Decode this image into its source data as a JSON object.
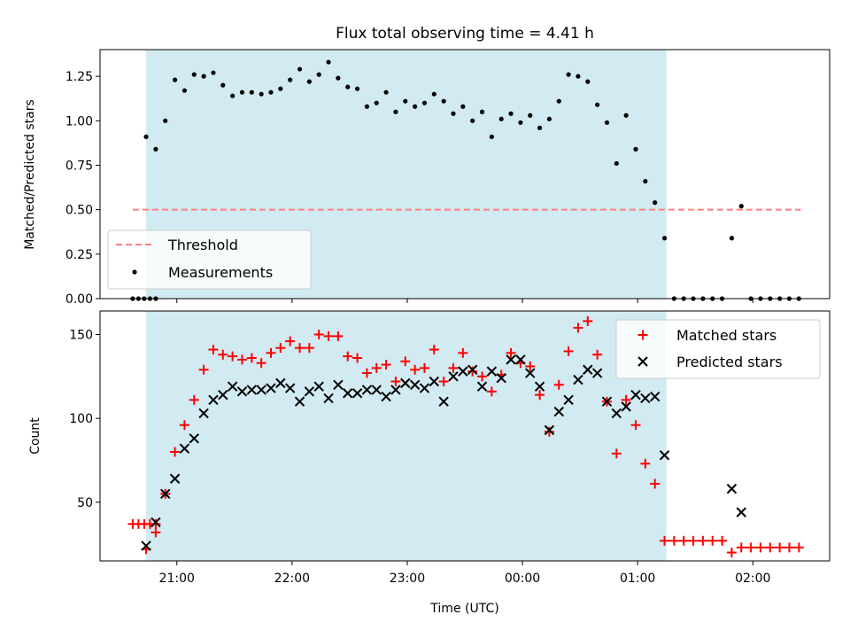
{
  "figure": {
    "title": "Flux total observing time = 4.41 h",
    "xlabel": "Time (UTC)"
  },
  "colors": {
    "shade": "#add8e6",
    "threshold": "#ff7f7f",
    "matched": "#ff0000",
    "predicted": "#000000",
    "measurements": "#000000"
  },
  "chart_data": [
    {
      "type": "scatter",
      "name": "ratio-panel",
      "ylabel": "Matched/Predicted stars",
      "ylim": [
        0,
        1.4
      ],
      "xlim": [
        "20:20",
        "02:40"
      ],
      "yticks": [
        "0.00",
        "0.25",
        "0.50",
        "0.75",
        "1.00",
        "1.25"
      ],
      "xticks": [
        "21:00",
        "22:00",
        "23:00",
        "00:00",
        "01:00",
        "02:00"
      ],
      "shaded_interval": [
        "20:44",
        "01:15"
      ],
      "threshold": {
        "name": "Threshold",
        "value": 0.5,
        "x": [
          "20:37",
          "02:25"
        ]
      },
      "legend": {
        "position": "lower-left",
        "entries": [
          "Threshold",
          "Measurements"
        ]
      },
      "series": [
        {
          "name": "Measurements",
          "points": [
            [
              "20:37",
              0.0
            ],
            [
              "20:40",
              0.0
            ],
            [
              "20:43",
              0.0
            ],
            [
              "20:46",
              0.0
            ],
            [
              "20:49",
              0.0
            ],
            [
              "20:44",
              0.91
            ],
            [
              "20:49",
              0.84
            ],
            [
              "20:54",
              1.0
            ],
            [
              "20:59",
              1.23
            ],
            [
              "21:04",
              1.17
            ],
            [
              "21:09",
              1.26
            ],
            [
              "21:14",
              1.25
            ],
            [
              "21:19",
              1.27
            ],
            [
              "21:24",
              1.2
            ],
            [
              "21:29",
              1.14
            ],
            [
              "21:34",
              1.16
            ],
            [
              "21:39",
              1.16
            ],
            [
              "21:44",
              1.15
            ],
            [
              "21:49",
              1.16
            ],
            [
              "21:54",
              1.18
            ],
            [
              "21:59",
              1.23
            ],
            [
              "22:04",
              1.29
            ],
            [
              "22:09",
              1.22
            ],
            [
              "22:14",
              1.26
            ],
            [
              "22:19",
              1.33
            ],
            [
              "22:24",
              1.24
            ],
            [
              "22:29",
              1.19
            ],
            [
              "22:34",
              1.18
            ],
            [
              "22:39",
              1.08
            ],
            [
              "22:44",
              1.1
            ],
            [
              "22:49",
              1.16
            ],
            [
              "22:54",
              1.05
            ],
            [
              "22:59",
              1.11
            ],
            [
              "23:04",
              1.08
            ],
            [
              "23:09",
              1.1
            ],
            [
              "23:14",
              1.15
            ],
            [
              "23:19",
              1.11
            ],
            [
              "23:24",
              1.04
            ],
            [
              "23:29",
              1.08
            ],
            [
              "23:34",
              1.0
            ],
            [
              "23:39",
              1.05
            ],
            [
              "23:44",
              0.91
            ],
            [
              "23:49",
              1.01
            ],
            [
              "23:54",
              1.04
            ],
            [
              "23:59",
              0.99
            ],
            [
              "00:04",
              1.03
            ],
            [
              "00:09",
              0.96
            ],
            [
              "00:14",
              1.01
            ],
            [
              "00:19",
              1.11
            ],
            [
              "00:24",
              1.26
            ],
            [
              "00:29",
              1.25
            ],
            [
              "00:34",
              1.22
            ],
            [
              "00:39",
              1.09
            ],
            [
              "00:44",
              0.99
            ],
            [
              "00:49",
              0.76
            ],
            [
              "00:54",
              1.03
            ],
            [
              "00:59",
              0.84
            ],
            [
              "01:04",
              0.66
            ],
            [
              "01:09",
              0.54
            ],
            [
              "01:14",
              0.34
            ],
            [
              "01:19",
              0.0
            ],
            [
              "01:24",
              0.0
            ],
            [
              "01:29",
              0.0
            ],
            [
              "01:34",
              0.0
            ],
            [
              "01:39",
              0.0
            ],
            [
              "01:44",
              0.0
            ],
            [
              "01:49",
              0.34
            ],
            [
              "01:54",
              0.52
            ],
            [
              "01:59",
              0.0
            ],
            [
              "02:04",
              0.0
            ],
            [
              "02:09",
              0.0
            ],
            [
              "02:14",
              0.0
            ],
            [
              "02:19",
              0.0
            ],
            [
              "02:24",
              0.0
            ]
          ]
        }
      ]
    },
    {
      "type": "scatter",
      "name": "count-panel",
      "ylabel": "Count",
      "ylim": [
        15,
        164
      ],
      "xlim": [
        "20:20",
        "02:40"
      ],
      "yticks": [
        "50",
        "100",
        "150"
      ],
      "xticks": [
        "21:00",
        "22:00",
        "23:00",
        "00:00",
        "01:00",
        "02:00"
      ],
      "shaded_interval": [
        "20:44",
        "01:15"
      ],
      "legend": {
        "position": "upper-right",
        "entries": [
          "Matched stars",
          "Predicted stars"
        ]
      },
      "series": [
        {
          "name": "Matched stars",
          "marker": "plus",
          "points": [
            [
              "20:37",
              37
            ],
            [
              "20:40",
              37
            ],
            [
              "20:43",
              37
            ],
            [
              "20:46",
              37
            ],
            [
              "20:49",
              37
            ],
            [
              "20:44",
              22
            ],
            [
              "20:49",
              32
            ],
            [
              "20:54",
              55
            ],
            [
              "20:59",
              80
            ],
            [
              "21:04",
              96
            ],
            [
              "21:09",
              111
            ],
            [
              "21:14",
              129
            ],
            [
              "21:19",
              141
            ],
            [
              "21:24",
              138
            ],
            [
              "21:29",
              137
            ],
            [
              "21:34",
              135
            ],
            [
              "21:39",
              136
            ],
            [
              "21:44",
              133
            ],
            [
              "21:49",
              139
            ],
            [
              "21:54",
              142
            ],
            [
              "21:59",
              146
            ],
            [
              "22:04",
              142
            ],
            [
              "22:09",
              142
            ],
            [
              "22:14",
              150
            ],
            [
              "22:19",
              149
            ],
            [
              "22:24",
              149
            ],
            [
              "22:29",
              137
            ],
            [
              "22:34",
              136
            ],
            [
              "22:39",
              127
            ],
            [
              "22:44",
              130
            ],
            [
              "22:49",
              132
            ],
            [
              "22:54",
              122
            ],
            [
              "22:59",
              134
            ],
            [
              "23:04",
              129
            ],
            [
              "23:09",
              130
            ],
            [
              "23:14",
              141
            ],
            [
              "23:19",
              122
            ],
            [
              "23:24",
              130
            ],
            [
              "23:29",
              139
            ],
            [
              "23:34",
              128
            ],
            [
              "23:39",
              125
            ],
            [
              "23:44",
              116
            ],
            [
              "23:49",
              126
            ],
            [
              "23:54",
              139
            ],
            [
              "23:59",
              133
            ],
            [
              "00:04",
              131
            ],
            [
              "00:09",
              114
            ],
            [
              "00:14",
              92
            ],
            [
              "00:19",
              120
            ],
            [
              "00:24",
              140
            ],
            [
              "00:29",
              154
            ],
            [
              "00:34",
              158
            ],
            [
              "00:39",
              138
            ],
            [
              "00:44",
              110
            ],
            [
              "00:49",
              79
            ],
            [
              "00:54",
              111
            ],
            [
              "00:59",
              96
            ],
            [
              "01:04",
              73
            ],
            [
              "01:09",
              61
            ],
            [
              "01:14",
              27
            ],
            [
              "01:19",
              27
            ],
            [
              "01:24",
              27
            ],
            [
              "01:29",
              27
            ],
            [
              "01:34",
              27
            ],
            [
              "01:39",
              27
            ],
            [
              "01:44",
              27
            ],
            [
              "01:49",
              20
            ],
            [
              "01:54",
              23
            ],
            [
              "01:59",
              23
            ],
            [
              "02:04",
              23
            ],
            [
              "02:09",
              23
            ],
            [
              "02:14",
              23
            ],
            [
              "02:19",
              23
            ],
            [
              "02:24",
              23
            ]
          ]
        },
        {
          "name": "Predicted stars",
          "marker": "x",
          "points": [
            [
              "20:44",
              24
            ],
            [
              "20:49",
              38
            ],
            [
              "20:54",
              55
            ],
            [
              "20:59",
              64
            ],
            [
              "21:04",
              82
            ],
            [
              "21:09",
              88
            ],
            [
              "21:14",
              103
            ],
            [
              "21:19",
              111
            ],
            [
              "21:24",
              114
            ],
            [
              "21:29",
              119
            ],
            [
              "21:34",
              116
            ],
            [
              "21:39",
              117
            ],
            [
              "21:44",
              117
            ],
            [
              "21:49",
              118
            ],
            [
              "21:54",
              121
            ],
            [
              "21:59",
              118
            ],
            [
              "22:04",
              110
            ],
            [
              "22:09",
              116
            ],
            [
              "22:14",
              119
            ],
            [
              "22:19",
              112
            ],
            [
              "22:24",
              120
            ],
            [
              "22:29",
              115
            ],
            [
              "22:34",
              115
            ],
            [
              "22:39",
              117
            ],
            [
              "22:44",
              117
            ],
            [
              "22:49",
              113
            ],
            [
              "22:54",
              117
            ],
            [
              "22:59",
              121
            ],
            [
              "23:04",
              120
            ],
            [
              "23:09",
              118
            ],
            [
              "23:14",
              122
            ],
            [
              "23:19",
              110
            ],
            [
              "23:24",
              125
            ],
            [
              "23:29",
              128
            ],
            [
              "23:34",
              129
            ],
            [
              "23:39",
              119
            ],
            [
              "23:44",
              128
            ],
            [
              "23:49",
              124
            ],
            [
              "23:54",
              135
            ],
            [
              "23:59",
              135
            ],
            [
              "00:04",
              127
            ],
            [
              "00:09",
              119
            ],
            [
              "00:14",
              93
            ],
            [
              "00:19",
              104
            ],
            [
              "00:24",
              111
            ],
            [
              "00:29",
              123
            ],
            [
              "00:34",
              129
            ],
            [
              "00:39",
              127
            ],
            [
              "00:44",
              110
            ],
            [
              "00:49",
              103
            ],
            [
              "00:54",
              107
            ],
            [
              "00:59",
              114
            ],
            [
              "01:04",
              112
            ],
            [
              "01:09",
              113
            ],
            [
              "01:14",
              78
            ],
            [
              "01:49",
              58
            ],
            [
              "01:54",
              44
            ]
          ]
        }
      ]
    }
  ]
}
